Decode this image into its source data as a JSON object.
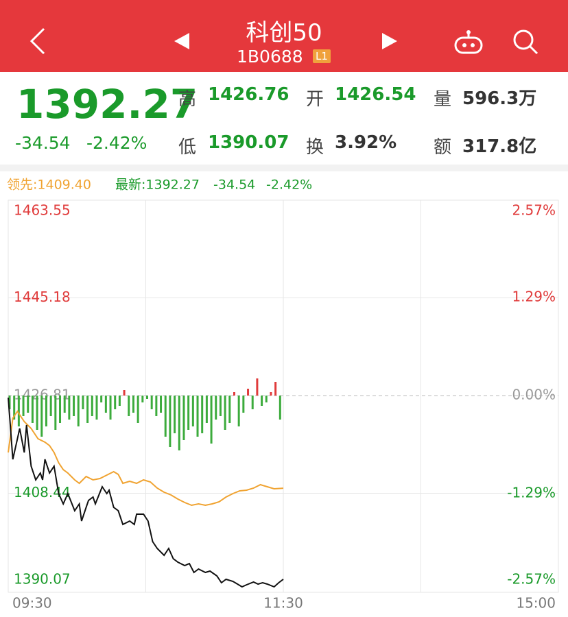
{
  "header": {
    "title": "科创50",
    "code": "1B0688",
    "badge": "L1"
  },
  "quote": {
    "price": "1392.27",
    "change": "-34.54",
    "change_pct": "-2.42%",
    "stats": [
      {
        "label": "高",
        "value": "1426.76"
      },
      {
        "label": "开",
        "value": "1426.54"
      },
      {
        "label": "量",
        "value": "596.3万"
      },
      {
        "label": "低",
        "value": "1390.07"
      },
      {
        "label": "换",
        "value": "3.92%"
      },
      {
        "label": "额",
        "value": "317.8亿"
      }
    ]
  },
  "chart_data": {
    "type": "line",
    "readout": {
      "lead": "领先:1409.40",
      "latest": "最新:1392.27",
      "change": "-34.54",
      "change_pct": "-2.42%"
    },
    "xlim": [
      0,
      240
    ],
    "xticks": [
      {
        "value": 0,
        "label": "09:30"
      },
      {
        "value": 120,
        "label": "11:30"
      },
      {
        "value": 240,
        "label": "15:00"
      }
    ],
    "ylim": [
      1390.07,
      1463.55
    ],
    "yticks": [
      1390.07,
      1408.44,
      1426.81,
      1445.18,
      1463.55
    ],
    "y2lim": [
      -2.57,
      2.57
    ],
    "y2ticks": [
      {
        "value": -2.57,
        "label": "-2.57%"
      },
      {
        "value": -1.29,
        "label": "-1.29%"
      },
      {
        "value": 0,
        "label": "0.00%"
      },
      {
        "value": 1.29,
        "label": "1.29%"
      },
      {
        "value": 2.57,
        "label": "2.57%"
      }
    ],
    "grid": true,
    "series": [
      {
        "color": "#111111",
        "x": [
          0,
          2,
          4,
          5,
          7,
          8,
          10,
          12,
          14,
          15,
          16,
          18,
          20,
          22,
          24,
          26,
          29,
          31,
          32,
          34,
          35,
          37,
          38,
          41,
          43,
          44,
          46,
          48,
          50,
          53,
          55,
          56,
          59,
          61,
          63,
          65,
          68,
          70,
          72,
          74,
          77,
          79,
          81,
          83,
          86,
          88,
          91,
          93,
          95,
          98,
          100,
          102,
          104,
          107,
          109,
          111,
          113,
          116,
          118,
          120
        ],
        "values": [
          1426.42,
          1414.82,
          1418.69,
          1420.62,
          1416.11,
          1421.27,
          1413.53,
          1410.95,
          1412.24,
          1410.95,
          1414.82,
          1412.24,
          1413.53,
          1408.38,
          1406.44,
          1408.38,
          1405.15,
          1406.44,
          1403.22,
          1405.8,
          1407.09,
          1407.73,
          1406.44,
          1409.67,
          1408.38,
          1409.02,
          1405.8,
          1405.15,
          1402.58,
          1403.22,
          1402.58,
          1404.51,
          1404.51,
          1403.22,
          1399.35,
          1398.06,
          1396.77,
          1398.06,
          1396.13,
          1395.49,
          1394.84,
          1395.23,
          1393.55,
          1394.2,
          1393.55,
          1393.81,
          1392.91,
          1391.62,
          1392.26,
          1391.88,
          1391.36,
          1390.84,
          1391.23,
          1391.75,
          1391.36,
          1391.62,
          1391.36,
          1390.84,
          1391.62,
          1392.27
        ]
      },
      {
        "color": "#f0a331",
        "x": [
          0,
          2,
          4,
          7,
          10,
          13,
          16,
          18,
          20,
          22,
          24,
          26,
          29,
          31,
          34,
          37,
          40,
          43,
          46,
          48,
          50,
          53,
          56,
          59,
          62,
          65,
          68,
          71,
          74,
          77,
          80,
          83,
          86,
          89,
          92,
          95,
          98,
          101,
          104,
          107,
          110,
          113,
          116,
          120
        ],
        "values": [
          1416.11,
          1422.56,
          1423.85,
          1421.91,
          1420.62,
          1418.69,
          1418.04,
          1417.4,
          1416.11,
          1414.18,
          1412.89,
          1412.24,
          1410.95,
          1410.31,
          1411.6,
          1410.95,
          1411.21,
          1411.86,
          1412.5,
          1411.99,
          1410.31,
          1410.7,
          1410.31,
          1410.95,
          1410.57,
          1409.41,
          1408.63,
          1408.12,
          1407.35,
          1406.7,
          1406.19,
          1406.44,
          1406.19,
          1406.44,
          1406.83,
          1407.73,
          1408.38,
          1408.89,
          1409.02,
          1409.41,
          1410.05,
          1409.67,
          1409.28,
          1409.4
        ]
      }
    ],
    "bars": {
      "up_color": "#e03b3b",
      "down_color": "#3cab3c",
      "x": [
        0,
        2,
        4,
        6,
        8,
        10,
        12,
        14,
        16,
        18,
        20,
        22,
        24,
        26,
        28,
        30,
        32,
        34,
        36,
        38,
        40,
        42,
        44,
        46,
        48,
        50,
        52,
        54,
        56,
        58,
        60,
        62,
        64,
        66,
        68,
        70,
        72,
        74,
        76,
        78,
        80,
        82,
        84,
        86,
        88,
        90,
        92,
        94,
        96,
        98,
        100,
        102,
        104,
        106,
        108,
        110,
        112,
        114,
        116,
        118
      ],
      "values": [
        -20,
        -35,
        -45,
        -30,
        -25,
        -40,
        -50,
        -60,
        -45,
        -30,
        -50,
        -40,
        -25,
        -35,
        -30,
        -45,
        -20,
        -40,
        -30,
        -35,
        -10,
        -25,
        -35,
        -20,
        -15,
        8,
        -30,
        -25,
        -40,
        -10,
        -5,
        -20,
        -30,
        -25,
        -60,
        -75,
        -55,
        -80,
        -65,
        -50,
        -45,
        -60,
        -55,
        -40,
        -70,
        -35,
        -30,
        -50,
        -40,
        5,
        -45,
        -25,
        10,
        -20,
        25,
        -15,
        -10,
        5,
        20,
        -35
      ]
    }
  }
}
